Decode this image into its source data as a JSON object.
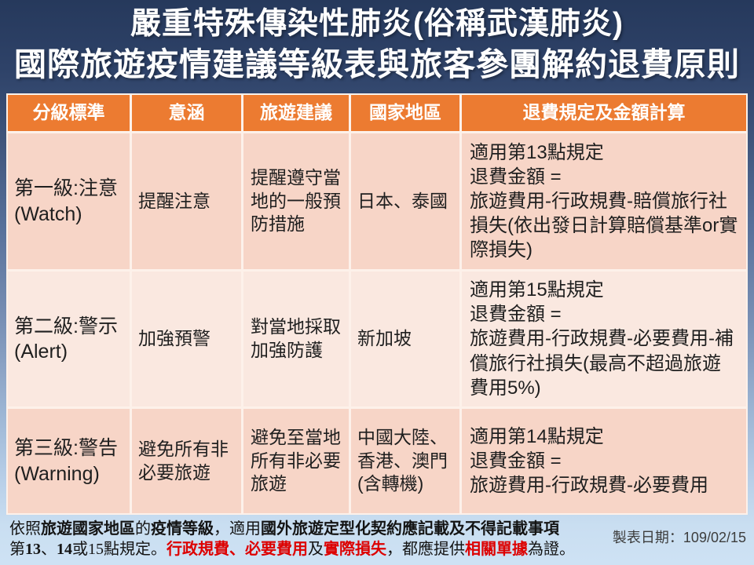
{
  "colors": {
    "header_bg": "#EC7B31",
    "row_dark": "#F7D5C7",
    "row_light": "#FAE8E0",
    "accent_red": "#DD0000"
  },
  "title": {
    "line1": "嚴重特殊傳染性肺炎(俗稱武漢肺炎)",
    "line2": "國際旅遊疫情建議等級表與旅客參團解約退費原則"
  },
  "table": {
    "headers": [
      "分級標準",
      "意涵",
      "旅遊建議",
      "國家地區",
      "退費規定及金額計算"
    ],
    "rows": [
      {
        "level": "第一級:注意\n(Watch)",
        "meaning": "提醒注意",
        "advice": "提醒遵守當地的一般預防措施",
        "regions": "日本、泰國",
        "refund": "適用第13點規定\n退費金額 =\n旅遊費用-行政規費-賠償旅行社損失(依出發日計算賠償基準or實際損失)"
      },
      {
        "level": "第二級:警示\n(Alert)",
        "meaning": "加強預警",
        "advice": "對當地採取加強防護",
        "regions": "新加坡",
        "refund": "適用第15點規定\n退費金額 =\n旅遊費用-行政規費-必要費用-補償旅行社損失(最高不超過旅遊費用5%)"
      },
      {
        "level": "第三級:警告\n(Warning)",
        "meaning": "避免所有非必要旅遊",
        "advice": "避免至當地所有非必要旅遊",
        "regions": "中國大陸、香港、澳門\n(含轉機)",
        "refund": "適用第14點規定\n退費金額 =\n旅遊費用-行政規費-必要費用"
      }
    ]
  },
  "footer": {
    "line1": [
      {
        "t": "依照",
        "b": false,
        "red": false
      },
      {
        "t": "旅遊國家地區",
        "b": true,
        "red": false
      },
      {
        "t": "的",
        "b": false,
        "red": false
      },
      {
        "t": "疫情等級",
        "b": true,
        "red": false
      },
      {
        "t": "，適用",
        "b": false,
        "red": false
      },
      {
        "t": "國外旅遊定型化契約應記載及不得記載事項",
        "b": true,
        "red": false
      }
    ],
    "line2": [
      {
        "t": "第",
        "b": false,
        "red": false
      },
      {
        "t": "13",
        "b": true,
        "red": false
      },
      {
        "t": "、",
        "b": false,
        "red": false
      },
      {
        "t": "14",
        "b": true,
        "red": false
      },
      {
        "t": "或15點規定。",
        "b": false,
        "red": false
      },
      {
        "t": "行政規費、必要費用",
        "b": true,
        "red": true
      },
      {
        "t": "及",
        "b": false,
        "red": false
      },
      {
        "t": "實際損失",
        "b": true,
        "red": true
      },
      {
        "t": "，都應提供",
        "b": false,
        "red": false
      },
      {
        "t": "相關單據",
        "b": true,
        "red": true
      },
      {
        "t": "為證。",
        "b": false,
        "red": false
      }
    ],
    "date": "製表日期：109/02/15"
  }
}
